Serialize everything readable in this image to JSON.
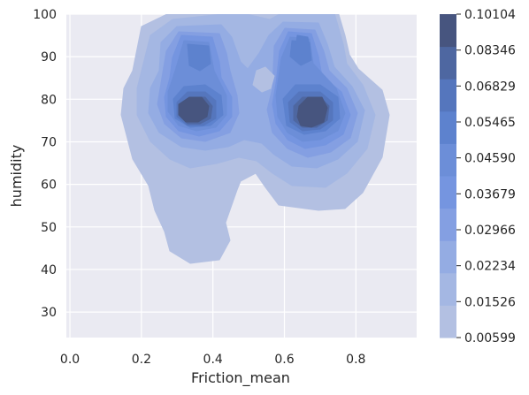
{
  "chart_data": {
    "type": "heatmap",
    "subtype": "kde-filled-contour",
    "title": "",
    "xlabel": "Friction_mean",
    "ylabel": "humidity",
    "xlim": [
      -0.01,
      0.97
    ],
    "ylim": [
      24,
      100
    ],
    "x_ticks": [
      "0.0",
      "0.2",
      "0.4",
      "0.6",
      "0.8"
    ],
    "x_tick_values": [
      0.0,
      0.2,
      0.4,
      0.6,
      0.8
    ],
    "y_ticks": [
      "30",
      "40",
      "50",
      "60",
      "70",
      "80",
      "90",
      "100"
    ],
    "y_tick_values": [
      30,
      40,
      50,
      60,
      70,
      80,
      90,
      100
    ],
    "grid": true,
    "background": "#eaeaf2",
    "colorbar": {
      "placement": "right",
      "levels": [
        0.00599,
        0.01526,
        0.02234,
        0.02966,
        0.03679,
        0.0459,
        0.05465,
        0.06829,
        0.08346,
        0.10104
      ],
      "labels": [
        "0.00599",
        "0.01526",
        "0.02234",
        "0.02966",
        "0.03679",
        "0.04590",
        "0.05465",
        "0.06829",
        "0.08346",
        "0.10104"
      ],
      "colors": [
        "#b3c0e2",
        "#a4b7e3",
        "#94ace3",
        "#849fe2",
        "#7595e0",
        "#6c8ed8",
        "#5d82ce",
        "#5576bd",
        "#4e67a1",
        "#47557f"
      ]
    },
    "density_peaks": [
      {
        "x": 0.34,
        "y": 77,
        "level": 0.10104
      },
      {
        "x": 0.71,
        "y": 74.5,
        "level": 0.10104
      },
      {
        "x": 0.37,
        "y": 92,
        "level": 0.05465
      },
      {
        "x": 0.66,
        "y": 93,
        "level": 0.0459
      },
      {
        "x": 0.55,
        "y": 84.5,
        "level": 0.01526
      }
    ]
  }
}
